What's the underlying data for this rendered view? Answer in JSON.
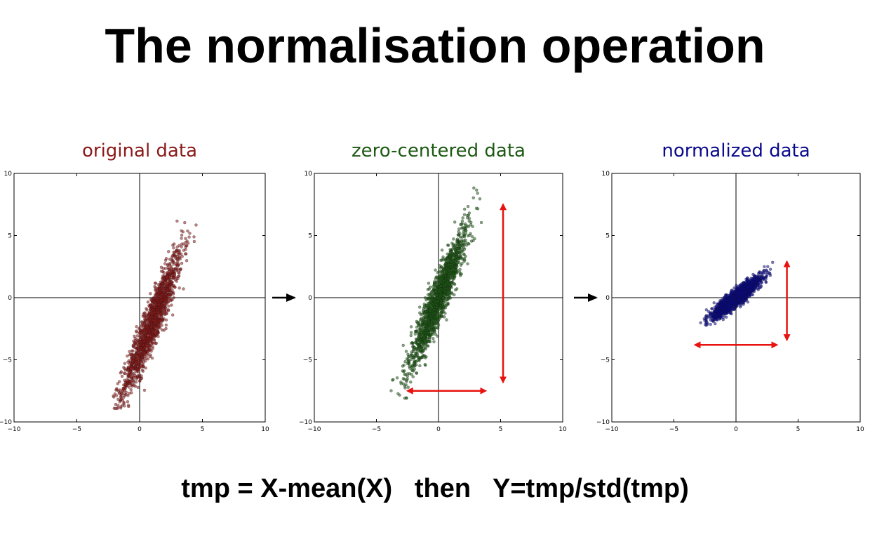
{
  "slide": {
    "title": "The normalisation operation",
    "formula": "tmp = X-mean(X)   then   Y=tmp/std(tmp)"
  },
  "colors": {
    "original": "#8b1a1a",
    "zero_centered": "#1e5a14",
    "normalized": "#0a0a8c",
    "extent_arrows": "#e8130f",
    "step_arrows": "#000000"
  },
  "chart_data": [
    {
      "type": "scatter",
      "title": "original data",
      "xlim": [
        -10,
        10
      ],
      "ylim": [
        -10,
        10
      ],
      "xticks": [
        -10,
        -5,
        0,
        5,
        10
      ],
      "yticks": [
        -10,
        -5,
        0,
        5,
        10
      ],
      "grid": false,
      "axes_lines_at_zero": true,
      "distribution": {
        "mean_x": 1.0,
        "mean_y": -2.0,
        "std_x": 1.2,
        "corr_slope": 2.3,
        "std_y_residual": 1.05,
        "n_points": 1500
      },
      "x_range": [
        -3.5,
        4.5
      ],
      "y_range": [
        -9.0,
        7.5
      ]
    },
    {
      "type": "scatter",
      "title": "zero-centered data",
      "xlim": [
        -10,
        10
      ],
      "ylim": [
        -10,
        10
      ],
      "xticks": [
        -10,
        -5,
        0,
        5,
        10
      ],
      "yticks": [
        -10,
        -5,
        0,
        5,
        10
      ],
      "grid": false,
      "axes_lines_at_zero": true,
      "distribution": {
        "mean_x": 0.0,
        "mean_y": 0.0,
        "std_x": 1.2,
        "corr_slope": 2.3,
        "std_y_residual": 1.05,
        "n_points": 1500
      },
      "x_range": [
        -4.5,
        3.5
      ],
      "y_range": [
        -8.5,
        9.0
      ],
      "extent_arrows": {
        "horizontal": {
          "from": [
            -2.5,
            -7.5
          ],
          "to": [
            3.8,
            -7.5
          ]
        },
        "vertical": {
          "from": [
            5.2,
            7.5
          ],
          "to": [
            5.2,
            -6.8
          ]
        }
      }
    },
    {
      "type": "scatter",
      "title": "normalized data",
      "xlim": [
        -10,
        10
      ],
      "ylim": [
        -10,
        10
      ],
      "xticks": [
        -10,
        -5,
        0,
        5,
        10
      ],
      "yticks": [
        -10,
        -5,
        0,
        5,
        10
      ],
      "grid": false,
      "axes_lines_at_zero": true,
      "distribution": {
        "mean_x": 0.0,
        "mean_y": 0.0,
        "std_x": 1.0,
        "corr_slope": 0.75,
        "std_y_residual": 0.35,
        "n_points": 1500
      },
      "x_range": [
        -3.0,
        3.0
      ],
      "y_range": [
        -2.8,
        3.5
      ],
      "extent_arrows": {
        "horizontal": {
          "from": [
            -3.3,
            -3.8
          ],
          "to": [
            3.3,
            -3.8
          ]
        },
        "vertical": {
          "from": [
            4.1,
            2.9
          ],
          "to": [
            4.1,
            -3.4
          ]
        }
      }
    }
  ]
}
